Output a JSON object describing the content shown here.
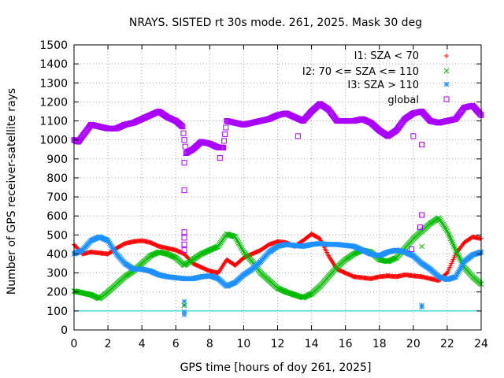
{
  "chart_data": {
    "type": "scatter",
    "title": "NRAYS. SISTED rt 30s mode. 261, 2025. Mask 30 deg",
    "xlabel": "GPS time [hours of doy 261, 2025]",
    "ylabel": "Number of GPS receiver-satellite rays",
    "xlim": [
      0,
      24
    ],
    "ylim": [
      0,
      1500
    ],
    "xticks": [
      "0",
      "2",
      "4",
      "6",
      "8",
      "10",
      "12",
      "14",
      "16",
      "18",
      "20",
      "22",
      "24"
    ],
    "yticks": [
      "0",
      "100",
      "200",
      "300",
      "400",
      "500",
      "600",
      "700",
      "800",
      "900",
      "1000",
      "1100",
      "1200",
      "1300",
      "1400",
      "1500"
    ],
    "grid": true,
    "legend_position": "top-right",
    "reference_line": {
      "y": 100,
      "color": "#00cccc"
    },
    "series": [
      {
        "name": "I1: SZA < 70",
        "marker": "+",
        "color": "#ff0000",
        "x": [
          0,
          0.5,
          1,
          1.5,
          2,
          2.5,
          3,
          3.5,
          4,
          4.5,
          5,
          5.5,
          6,
          6.5,
          7,
          7.5,
          8,
          8.5,
          9,
          9.5,
          10,
          10.5,
          11,
          11.5,
          12,
          12.5,
          13,
          13.5,
          14,
          14.5,
          15,
          15.5,
          16,
          16.5,
          17,
          17.5,
          18,
          18.5,
          19,
          19.5,
          20,
          20.5,
          21,
          21.5,
          22,
          22.5,
          23,
          23.5,
          24
        ],
        "y": [
          450,
          400,
          410,
          405,
          400,
          430,
          455,
          465,
          470,
          460,
          440,
          430,
          420,
          400,
          350,
          330,
          310,
          300,
          370,
          340,
          380,
          400,
          420,
          450,
          465,
          460,
          440,
          470,
          505,
          480,
          390,
          320,
          300,
          280,
          275,
          270,
          280,
          285,
          280,
          290,
          285,
          280,
          270,
          260,
          300,
          400,
          460,
          490,
          480
        ]
      },
      {
        "name": "I2: 70 <= SZA <= 110",
        "marker": "x",
        "color": "#00bb00",
        "x": [
          0,
          0.5,
          1,
          1.5,
          2,
          2.5,
          3,
          3.5,
          4,
          4.5,
          5,
          5.5,
          6,
          6.5,
          7,
          7.5,
          8,
          8.5,
          9,
          9.5,
          10,
          10.5,
          11,
          11.5,
          12,
          12.5,
          13,
          13.5,
          14,
          14.5,
          15,
          15.5,
          16,
          16.5,
          17,
          17.5,
          18,
          18.5,
          19,
          19.5,
          20,
          20.5,
          21,
          21.5,
          22,
          22.5,
          23,
          23.5,
          24
        ],
        "y": [
          205,
          195,
          185,
          165,
          200,
          240,
          280,
          310,
          350,
          390,
          410,
          400,
          380,
          340,
          370,
          400,
          420,
          440,
          505,
          490,
          410,
          360,
          300,
          260,
          220,
          200,
          185,
          170,
          190,
          230,
          280,
          330,
          370,
          400,
          420,
          410,
          370,
          360,
          380,
          430,
          480,
          520,
          560,
          590,
          520,
          420,
          330,
          280,
          240
        ]
      },
      {
        "name": "I3: SZA > 110",
        "marker": "*",
        "color": "#1e90ff",
        "x": [
          0,
          0.5,
          1,
          1.5,
          2,
          2.5,
          3,
          3.5,
          4,
          4.5,
          5,
          5.5,
          6,
          6.5,
          7,
          7.5,
          8,
          8.5,
          9,
          9.5,
          10,
          10.5,
          11,
          11.5,
          12,
          12.5,
          13,
          13.5,
          14,
          14.5,
          15,
          15.5,
          16,
          16.5,
          17,
          17.5,
          18,
          18.5,
          19,
          19.5,
          20,
          20.5,
          21,
          21.5,
          22,
          22.5,
          23,
          23.5,
          24
        ],
        "y": [
          400,
          420,
          470,
          490,
          470,
          400,
          350,
          320,
          320,
          310,
          290,
          280,
          275,
          270,
          270,
          280,
          285,
          270,
          230,
          250,
          290,
          320,
          360,
          410,
          440,
          450,
          445,
          440,
          450,
          455,
          450,
          450,
          445,
          440,
          420,
          400,
          390,
          410,
          420,
          410,
          390,
          350,
          320,
          280,
          265,
          280,
          360,
          395,
          410
        ]
      },
      {
        "name": "global",
        "marker": "square",
        "color": "#aa00ff",
        "x": [
          0,
          0.25,
          0.5,
          1,
          1.5,
          2,
          2.5,
          3,
          3.5,
          4,
          4.5,
          5,
          5.5,
          6,
          6.4,
          6.6,
          7,
          7.5,
          8,
          8.5,
          8.8,
          9,
          9.5,
          10,
          10.5,
          11,
          11.5,
          12,
          12.5,
          13,
          13.5,
          14,
          14.5,
          15,
          15.5,
          16,
          16.5,
          17,
          17.5,
          18,
          18.5,
          19,
          19.5,
          20,
          20.5,
          21,
          21.5,
          22,
          22.5,
          23,
          23.5,
          24
        ],
        "y": [
          1000,
          990,
          1020,
          1080,
          1070,
          1060,
          1060,
          1080,
          1090,
          1110,
          1130,
          1150,
          1120,
          1100,
          1070,
          930,
          950,
          990,
          980,
          960,
          960,
          1100,
          1090,
          1080,
          1090,
          1100,
          1110,
          1130,
          1140,
          1120,
          1100,
          1150,
          1190,
          1160,
          1100,
          1100,
          1100,
          1110,
          1090,
          1050,
          1020,
          1050,
          1110,
          1140,
          1150,
          1100,
          1090,
          1100,
          1110,
          1170,
          1180,
          1130
        ]
      }
    ],
    "scattered_points": [
      {
        "series": "global",
        "x": 6.5,
        "y": 735
      },
      {
        "series": "global",
        "x": 6.5,
        "y": 515
      },
      {
        "series": "global",
        "x": 6.5,
        "y": 485
      },
      {
        "series": "global",
        "x": 6.5,
        "y": 450
      },
      {
        "series": "global",
        "x": 6.5,
        "y": 420
      },
      {
        "series": "global",
        "x": 6.5,
        "y": 880
      },
      {
        "series": "global",
        "x": 8.6,
        "y": 905
      },
      {
        "series": "global",
        "x": 13.2,
        "y": 1020
      },
      {
        "series": "global",
        "x": 20.0,
        "y": 1020
      },
      {
        "series": "global",
        "x": 20.5,
        "y": 975
      },
      {
        "series": "global",
        "x": 20.5,
        "y": 605
      },
      {
        "series": "global",
        "x": 20.4,
        "y": 540
      },
      {
        "series": "global",
        "x": 19.9,
        "y": 425
      },
      {
        "series": "I3: SZA > 110",
        "x": 6.5,
        "y": 150
      },
      {
        "series": "I3: SZA > 110",
        "x": 6.5,
        "y": 130
      },
      {
        "series": "I3: SZA > 110",
        "x": 6.5,
        "y": 95
      },
      {
        "series": "I3: SZA > 110",
        "x": 6.5,
        "y": 80
      },
      {
        "series": "I3: SZA > 110",
        "x": 20.5,
        "y": 130
      },
      {
        "series": "I3: SZA > 110",
        "x": 20.5,
        "y": 120
      },
      {
        "series": "I2: 70 <= SZA <= 110",
        "x": 6.5,
        "y": 340
      },
      {
        "series": "I2: 70 <= SZA <= 110",
        "x": 6.5,
        "y": 130
      },
      {
        "series": "I2: 70 <= SZA <= 110",
        "x": 20.5,
        "y": 440
      }
    ]
  }
}
